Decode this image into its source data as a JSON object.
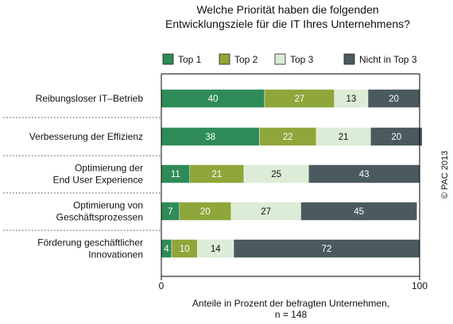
{
  "title": [
    "Welche Priorität haben die folgenden",
    "Entwicklungsziele für die IT Ihres Unternehmens?"
  ],
  "copyright": "© PAC 2013",
  "chart_data": {
    "type": "bar",
    "orientation": "horizontal",
    "stacked": true,
    "categories": [
      [
        "Reibungsloser IT–Betrieb"
      ],
      [
        "Verbesserung der Effizienz"
      ],
      [
        "Optimierung der",
        "End User Experience"
      ],
      [
        "Optimierung von",
        "Geschäftsprozessen"
      ],
      [
        "Förderung geschäftlicher",
        "Innovationen"
      ]
    ],
    "series": [
      {
        "name": "Top 1",
        "color": "#2e8b57",
        "label_color": "#ffffff",
        "values": [
          40,
          38,
          11,
          7,
          4
        ]
      },
      {
        "name": "Top 2",
        "color": "#8fa63a",
        "label_color": "#ffffff",
        "values": [
          27,
          22,
          21,
          20,
          10
        ]
      },
      {
        "name": "Top 3",
        "color": "#dcecd6",
        "label_color": "#111111",
        "values": [
          13,
          21,
          25,
          27,
          14
        ]
      },
      {
        "name": "Nicht in Top 3",
        "color": "#4a5a5f",
        "label_color": "#ffffff",
        "values": [
          20,
          20,
          43,
          45,
          72
        ]
      }
    ],
    "xlim": [
      0,
      100
    ],
    "xticks": [
      "0",
      "100"
    ],
    "xlabel": [
      "Anteile in Prozent der befragten Unternehmen,",
      "n = 148"
    ],
    "legend_position": "top"
  }
}
